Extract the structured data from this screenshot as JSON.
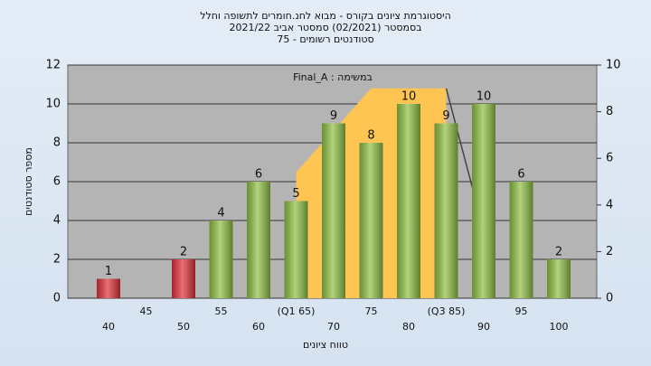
{
  "chart_data": {
    "type": "bar",
    "title": [
      "היסטוגרמת ציונים בקורס - מבוא לחנ.חומרים לתשופה וחלל",
      "בסמסטר  (02/2021)  סמסטר אביב 2021/22",
      "סטודנטים רשומים - 75"
    ],
    "annotation": "Final_A : במשימה",
    "x_label": "טווח ציונים",
    "y_label": "מספר סטודנטים",
    "categories": [
      "40",
      "45",
      "50",
      "55",
      "60",
      "(Q1 65)",
      "70",
      "75",
      "80",
      "(Q3 85)",
      "90",
      "95",
      "100"
    ],
    "values": [
      1,
      0,
      2,
      4,
      6,
      5,
      9,
      8,
      10,
      9,
      10,
      6,
      2
    ],
    "colors": [
      "#e0303a",
      "#e0303a",
      "#e0303a",
      "#8fc043",
      "#8fc043",
      "#8fc043",
      "#8fc043",
      "#8fc043",
      "#8fc043",
      "#8fc043",
      "#8fc043",
      "#8fc043",
      "#8fc043"
    ],
    "ylim": [
      0,
      12
    ],
    "yticks": [
      0,
      2,
      4,
      6,
      8,
      10,
      12
    ],
    "y2lim": [
      0,
      10
    ],
    "y2ticks": [
      0,
      2,
      4,
      6,
      8,
      10
    ],
    "grid": true,
    "area": {
      "axis": "y2",
      "color": "#ffc552",
      "values": [
        null,
        null,
        null,
        null,
        null,
        5.4,
        7.2,
        9,
        9,
        9,
        null,
        null,
        null
      ]
    },
    "line": {
      "axis": "y2",
      "color": "#444444",
      "values": [
        null,
        null,
        null,
        null,
        null,
        null,
        null,
        null,
        null,
        9,
        2.9,
        null,
        null
      ]
    }
  }
}
